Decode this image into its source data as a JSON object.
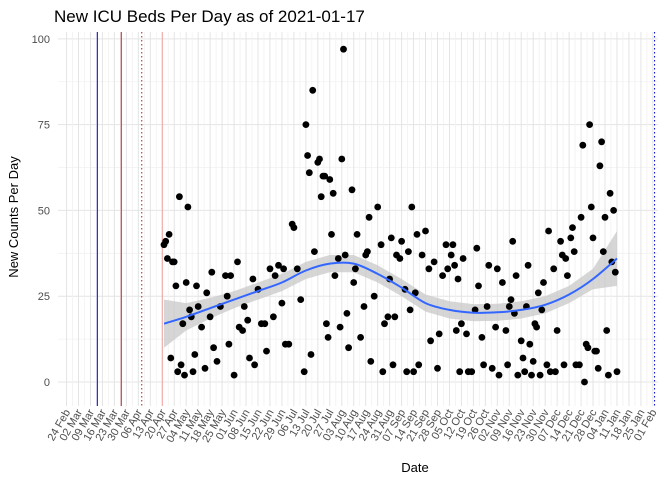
{
  "chart_data": {
    "type": "scatter",
    "title": "New ICU Beds Per Day as of 2021-01-17",
    "xlabel": "Date",
    "ylabel": "New Counts Per Day",
    "ylim": [
      -7,
      102
    ],
    "xlim": [
      "2020-02-19",
      "2021-02-04"
    ],
    "grid": true,
    "y_ticks": [
      "0",
      "25",
      "50",
      "75",
      "100"
    ],
    "x_ticks": [
      "24 Feb",
      "02 Mar",
      "09 Mar",
      "16 Mar",
      "23 Mar",
      "30 Mar",
      "06 Apr",
      "13 Apr",
      "20 Apr",
      "27 Apr",
      "04 May",
      "11 May",
      "18 May",
      "25 May",
      "01 Jun",
      "08 Jun",
      "15 Jun",
      "22 Jun",
      "29 Jun",
      "06 Jul",
      "13 Jul",
      "20 Jul",
      "27 Jul",
      "03 Aug",
      "10 Aug",
      "17 Aug",
      "24 Aug",
      "31 Aug",
      "07 Sep",
      "14 Sep",
      "21 Sep",
      "28 Sep",
      "05 Oct",
      "12 Oct",
      "19 Oct",
      "26 Oct",
      "02 Nov",
      "09 Nov",
      "16 Nov",
      "23 Nov",
      "30 Nov",
      "07 Dec",
      "14 Dec",
      "21 Dec",
      "28 Dec",
      "04 Jan",
      "11 Jan",
      "18 Jan",
      "25 Jan",
      "01 Feb"
    ],
    "reference_lines": [
      {
        "date": "2020-03-13",
        "color": "#0000cc",
        "style": "solid"
      },
      {
        "date": "2020-03-27",
        "color": "#b22222",
        "style": "solid"
      },
      {
        "date": "2020-04-08",
        "color": "#b22222",
        "style": "dotted"
      },
      {
        "date": "2020-04-20",
        "color": "#f4a0a0",
        "style": "solid"
      },
      {
        "date": "2021-02-02",
        "color": "#0000cc",
        "style": "dotted"
      }
    ],
    "colors": {
      "points": "#000000",
      "smooth": "#3366ff",
      "band": "#c8c8c8"
    },
    "points": [
      {
        "date": "2020-04-21",
        "value": 40
      },
      {
        "date": "2020-04-22",
        "value": 41
      },
      {
        "date": "2020-04-23",
        "value": 36
      },
      {
        "date": "2020-04-24",
        "value": 43
      },
      {
        "date": "2020-04-25",
        "value": 7
      },
      {
        "date": "2020-04-26",
        "value": 35
      },
      {
        "date": "2020-04-27",
        "value": 35
      },
      {
        "date": "2020-04-28",
        "value": 28
      },
      {
        "date": "2020-04-29",
        "value": 3
      },
      {
        "date": "2020-04-30",
        "value": 54
      },
      {
        "date": "2020-05-01",
        "value": 5
      },
      {
        "date": "2020-05-02",
        "value": 17
      },
      {
        "date": "2020-05-03",
        "value": 2
      },
      {
        "date": "2020-05-04",
        "value": 29
      },
      {
        "date": "2020-05-05",
        "value": 51
      },
      {
        "date": "2020-05-06",
        "value": 21
      },
      {
        "date": "2020-05-07",
        "value": 19
      },
      {
        "date": "2020-05-08",
        "value": 3
      },
      {
        "date": "2020-05-09",
        "value": 8
      },
      {
        "date": "2020-05-10",
        "value": 28
      },
      {
        "date": "2020-05-11",
        "value": 22
      },
      {
        "date": "2020-05-13",
        "value": 16
      },
      {
        "date": "2020-05-15",
        "value": 4
      },
      {
        "date": "2020-05-16",
        "value": 26
      },
      {
        "date": "2020-05-18",
        "value": 19
      },
      {
        "date": "2020-05-19",
        "value": 32
      },
      {
        "date": "2020-05-20",
        "value": 10
      },
      {
        "date": "2020-05-22",
        "value": 6
      },
      {
        "date": "2020-05-24",
        "value": 22
      },
      {
        "date": "2020-05-27",
        "value": 31
      },
      {
        "date": "2020-05-28",
        "value": 25
      },
      {
        "date": "2020-05-29",
        "value": 11
      },
      {
        "date": "2020-05-30",
        "value": 31
      },
      {
        "date": "2020-06-01",
        "value": 2
      },
      {
        "date": "2020-06-03",
        "value": 35
      },
      {
        "date": "2020-06-04",
        "value": 16
      },
      {
        "date": "2020-06-06",
        "value": 15
      },
      {
        "date": "2020-06-07",
        "value": 22
      },
      {
        "date": "2020-06-09",
        "value": 18
      },
      {
        "date": "2020-06-10",
        "value": 7
      },
      {
        "date": "2020-06-12",
        "value": 30
      },
      {
        "date": "2020-06-13",
        "value": 5
      },
      {
        "date": "2020-06-15",
        "value": 27
      },
      {
        "date": "2020-06-17",
        "value": 17
      },
      {
        "date": "2020-06-19",
        "value": 17
      },
      {
        "date": "2020-06-20",
        "value": 9
      },
      {
        "date": "2020-06-22",
        "value": 33
      },
      {
        "date": "2020-06-24",
        "value": 19
      },
      {
        "date": "2020-06-25",
        "value": 31
      },
      {
        "date": "2020-06-27",
        "value": 34
      },
      {
        "date": "2020-06-29",
        "value": 23
      },
      {
        "date": "2020-06-30",
        "value": 33
      },
      {
        "date": "2020-07-01",
        "value": 11
      },
      {
        "date": "2020-07-03",
        "value": 11
      },
      {
        "date": "2020-07-05",
        "value": 46
      },
      {
        "date": "2020-07-06",
        "value": 45
      },
      {
        "date": "2020-07-08",
        "value": 33
      },
      {
        "date": "2020-07-10",
        "value": 24
      },
      {
        "date": "2020-07-12",
        "value": 3
      },
      {
        "date": "2020-07-13",
        "value": 75
      },
      {
        "date": "2020-07-14",
        "value": 66
      },
      {
        "date": "2020-07-15",
        "value": 61
      },
      {
        "date": "2020-07-16",
        "value": 8
      },
      {
        "date": "2020-07-17",
        "value": 85
      },
      {
        "date": "2020-07-18",
        "value": 38
      },
      {
        "date": "2020-07-20",
        "value": 64
      },
      {
        "date": "2020-07-21",
        "value": 65
      },
      {
        "date": "2020-07-22",
        "value": 54
      },
      {
        "date": "2020-07-23",
        "value": 60
      },
      {
        "date": "2020-07-24",
        "value": 60
      },
      {
        "date": "2020-07-25",
        "value": 17
      },
      {
        "date": "2020-07-26",
        "value": 13
      },
      {
        "date": "2020-07-27",
        "value": 59
      },
      {
        "date": "2020-07-28",
        "value": 43
      },
      {
        "date": "2020-07-29",
        "value": 55
      },
      {
        "date": "2020-07-30",
        "value": 31
      },
      {
        "date": "2020-08-01",
        "value": 36
      },
      {
        "date": "2020-08-02",
        "value": 16
      },
      {
        "date": "2020-08-03",
        "value": 65
      },
      {
        "date": "2020-08-04",
        "value": 97
      },
      {
        "date": "2020-08-05",
        "value": 37
      },
      {
        "date": "2020-08-06",
        "value": 20
      },
      {
        "date": "2020-08-07",
        "value": 10
      },
      {
        "date": "2020-08-09",
        "value": 56
      },
      {
        "date": "2020-08-10",
        "value": 29
      },
      {
        "date": "2020-08-11",
        "value": 33
      },
      {
        "date": "2020-08-12",
        "value": 43
      },
      {
        "date": "2020-08-14",
        "value": 13
      },
      {
        "date": "2020-08-16",
        "value": 22
      },
      {
        "date": "2020-08-17",
        "value": 37
      },
      {
        "date": "2020-08-18",
        "value": 38
      },
      {
        "date": "2020-08-19",
        "value": 48
      },
      {
        "date": "2020-08-20",
        "value": 6
      },
      {
        "date": "2020-08-22",
        "value": 25
      },
      {
        "date": "2020-08-24",
        "value": 51
      },
      {
        "date": "2020-08-26",
        "value": 40
      },
      {
        "date": "2020-08-27",
        "value": 3
      },
      {
        "date": "2020-08-28",
        "value": 17
      },
      {
        "date": "2020-08-30",
        "value": 19
      },
      {
        "date": "2020-08-31",
        "value": 30
      },
      {
        "date": "2020-09-01",
        "value": 42
      },
      {
        "date": "2020-09-02",
        "value": 5
      },
      {
        "date": "2020-09-03",
        "value": 19
      },
      {
        "date": "2020-09-04",
        "value": 37
      },
      {
        "date": "2020-09-06",
        "value": 36
      },
      {
        "date": "2020-09-07",
        "value": 41
      },
      {
        "date": "2020-09-09",
        "value": 27
      },
      {
        "date": "2020-09-10",
        "value": 3
      },
      {
        "date": "2020-09-11",
        "value": 38
      },
      {
        "date": "2020-09-12",
        "value": 21
      },
      {
        "date": "2020-09-13",
        "value": 51
      },
      {
        "date": "2020-09-14",
        "value": 3
      },
      {
        "date": "2020-09-15",
        "value": 26
      },
      {
        "date": "2020-09-16",
        "value": 43
      },
      {
        "date": "2020-09-17",
        "value": 5
      },
      {
        "date": "2020-09-19",
        "value": 37
      },
      {
        "date": "2020-09-21",
        "value": 44
      },
      {
        "date": "2020-09-23",
        "value": 33
      },
      {
        "date": "2020-09-24",
        "value": 12
      },
      {
        "date": "2020-09-26",
        "value": 35
      },
      {
        "date": "2020-09-28",
        "value": 4
      },
      {
        "date": "2020-09-29",
        "value": 14
      },
      {
        "date": "2020-10-01",
        "value": 31
      },
      {
        "date": "2020-10-03",
        "value": 40
      },
      {
        "date": "2020-10-04",
        "value": 33
      },
      {
        "date": "2020-10-06",
        "value": 37
      },
      {
        "date": "2020-10-07",
        "value": 40
      },
      {
        "date": "2020-10-08",
        "value": 34
      },
      {
        "date": "2020-10-09",
        "value": 15
      },
      {
        "date": "2020-10-10",
        "value": 30
      },
      {
        "date": "2020-10-11",
        "value": 3
      },
      {
        "date": "2020-10-12",
        "value": 17
      },
      {
        "date": "2020-10-13",
        "value": 36
      },
      {
        "date": "2020-10-15",
        "value": 14
      },
      {
        "date": "2020-10-16",
        "value": 3
      },
      {
        "date": "2020-10-18",
        "value": 3
      },
      {
        "date": "2020-10-20",
        "value": 21
      },
      {
        "date": "2020-10-21",
        "value": 39
      },
      {
        "date": "2020-10-22",
        "value": 28
      },
      {
        "date": "2020-10-24",
        "value": 13
      },
      {
        "date": "2020-10-25",
        "value": 5
      },
      {
        "date": "2020-10-27",
        "value": 22
      },
      {
        "date": "2020-10-28",
        "value": 34
      },
      {
        "date": "2020-10-30",
        "value": 4
      },
      {
        "date": "2020-11-01",
        "value": 16
      },
      {
        "date": "2020-11-02",
        "value": 33
      },
      {
        "date": "2020-11-03",
        "value": 2
      },
      {
        "date": "2020-11-05",
        "value": 29
      },
      {
        "date": "2020-11-07",
        "value": 15
      },
      {
        "date": "2020-11-08",
        "value": 5
      },
      {
        "date": "2020-11-09",
        "value": 22
      },
      {
        "date": "2020-11-10",
        "value": 24
      },
      {
        "date": "2020-11-11",
        "value": 41
      },
      {
        "date": "2020-11-12",
        "value": 20
      },
      {
        "date": "2020-11-13",
        "value": 31
      },
      {
        "date": "2020-11-14",
        "value": 2
      },
      {
        "date": "2020-11-16",
        "value": 12
      },
      {
        "date": "2020-11-17",
        "value": 7
      },
      {
        "date": "2020-11-18",
        "value": 3
      },
      {
        "date": "2020-11-19",
        "value": 22
      },
      {
        "date": "2020-11-20",
        "value": 34
      },
      {
        "date": "2020-11-21",
        "value": 11
      },
      {
        "date": "2020-11-22",
        "value": 2
      },
      {
        "date": "2020-11-23",
        "value": 6
      },
      {
        "date": "2020-11-24",
        "value": 17
      },
      {
        "date": "2020-11-25",
        "value": 16
      },
      {
        "date": "2020-11-26",
        "value": 26
      },
      {
        "date": "2020-11-27",
        "value": 2
      },
      {
        "date": "2020-11-28",
        "value": 21
      },
      {
        "date": "2020-11-29",
        "value": 29
      },
      {
        "date": "2020-12-01",
        "value": 5
      },
      {
        "date": "2020-12-02",
        "value": 44
      },
      {
        "date": "2020-12-03",
        "value": 3
      },
      {
        "date": "2020-12-05",
        "value": 33
      },
      {
        "date": "2020-12-06",
        "value": 3
      },
      {
        "date": "2020-12-07",
        "value": 15
      },
      {
        "date": "2020-12-09",
        "value": 41
      },
      {
        "date": "2020-12-10",
        "value": 37
      },
      {
        "date": "2020-12-11",
        "value": 5
      },
      {
        "date": "2020-12-12",
        "value": 36
      },
      {
        "date": "2020-12-13",
        "value": 31
      },
      {
        "date": "2020-12-15",
        "value": 42
      },
      {
        "date": "2020-12-16",
        "value": 45
      },
      {
        "date": "2020-12-17",
        "value": 38
      },
      {
        "date": "2020-12-18",
        "value": 5
      },
      {
        "date": "2020-12-20",
        "value": 5
      },
      {
        "date": "2020-12-21",
        "value": 48
      },
      {
        "date": "2020-12-22",
        "value": 69
      },
      {
        "date": "2020-12-23",
        "value": 0
      },
      {
        "date": "2020-12-24",
        "value": 11
      },
      {
        "date": "2020-12-25",
        "value": 10
      },
      {
        "date": "2020-12-26",
        "value": 75
      },
      {
        "date": "2020-12-27",
        "value": 51
      },
      {
        "date": "2020-12-28",
        "value": 42
      },
      {
        "date": "2020-12-29",
        "value": 9
      },
      {
        "date": "2020-12-30",
        "value": 9
      },
      {
        "date": "2020-12-31",
        "value": 4
      },
      {
        "date": "2021-01-01",
        "value": 63
      },
      {
        "date": "2021-01-02",
        "value": 70
      },
      {
        "date": "2021-01-03",
        "value": 38
      },
      {
        "date": "2021-01-04",
        "value": 48
      },
      {
        "date": "2021-01-05",
        "value": 15
      },
      {
        "date": "2021-01-06",
        "value": 2
      },
      {
        "date": "2021-01-07",
        "value": 55
      },
      {
        "date": "2021-01-08",
        "value": 35
      },
      {
        "date": "2021-01-09",
        "value": 50
      },
      {
        "date": "2021-01-10",
        "value": 32
      },
      {
        "date": "2021-01-11",
        "value": 3
      }
    ],
    "smooth": [
      {
        "date": "2020-04-21",
        "value": 17,
        "low": 10,
        "high": 24
      },
      {
        "date": "2020-05-04",
        "value": 19,
        "low": 15,
        "high": 23
      },
      {
        "date": "2020-05-18",
        "value": 21.5,
        "low": 18.5,
        "high": 24.5
      },
      {
        "date": "2020-06-01",
        "value": 24,
        "low": 21.5,
        "high": 26.5
      },
      {
        "date": "2020-06-15",
        "value": 26.5,
        "low": 24,
        "high": 29
      },
      {
        "date": "2020-06-29",
        "value": 29,
        "low": 26.5,
        "high": 31.5
      },
      {
        "date": "2020-07-13",
        "value": 32.5,
        "low": 30,
        "high": 35
      },
      {
        "date": "2020-07-27",
        "value": 34.5,
        "low": 32,
        "high": 37
      },
      {
        "date": "2020-08-10",
        "value": 34.5,
        "low": 32,
        "high": 37
      },
      {
        "date": "2020-08-24",
        "value": 31.5,
        "low": 29,
        "high": 34
      },
      {
        "date": "2020-09-07",
        "value": 27.5,
        "low": 25,
        "high": 30
      },
      {
        "date": "2020-09-21",
        "value": 23,
        "low": 20.5,
        "high": 25.5
      },
      {
        "date": "2020-10-05",
        "value": 21,
        "low": 18.5,
        "high": 23.5
      },
      {
        "date": "2020-10-19",
        "value": 20.2,
        "low": 17.7,
        "high": 22.7
      },
      {
        "date": "2020-11-02",
        "value": 20.3,
        "low": 17.8,
        "high": 22.8
      },
      {
        "date": "2020-11-16",
        "value": 21,
        "low": 18.5,
        "high": 23.5
      },
      {
        "date": "2020-11-30",
        "value": 22.5,
        "low": 20,
        "high": 25
      },
      {
        "date": "2020-12-14",
        "value": 25.5,
        "low": 23,
        "high": 28
      },
      {
        "date": "2020-12-28",
        "value": 30,
        "low": 27,
        "high": 33
      },
      {
        "date": "2021-01-11",
        "value": 36,
        "low": 28,
        "high": 44
      }
    ]
  }
}
